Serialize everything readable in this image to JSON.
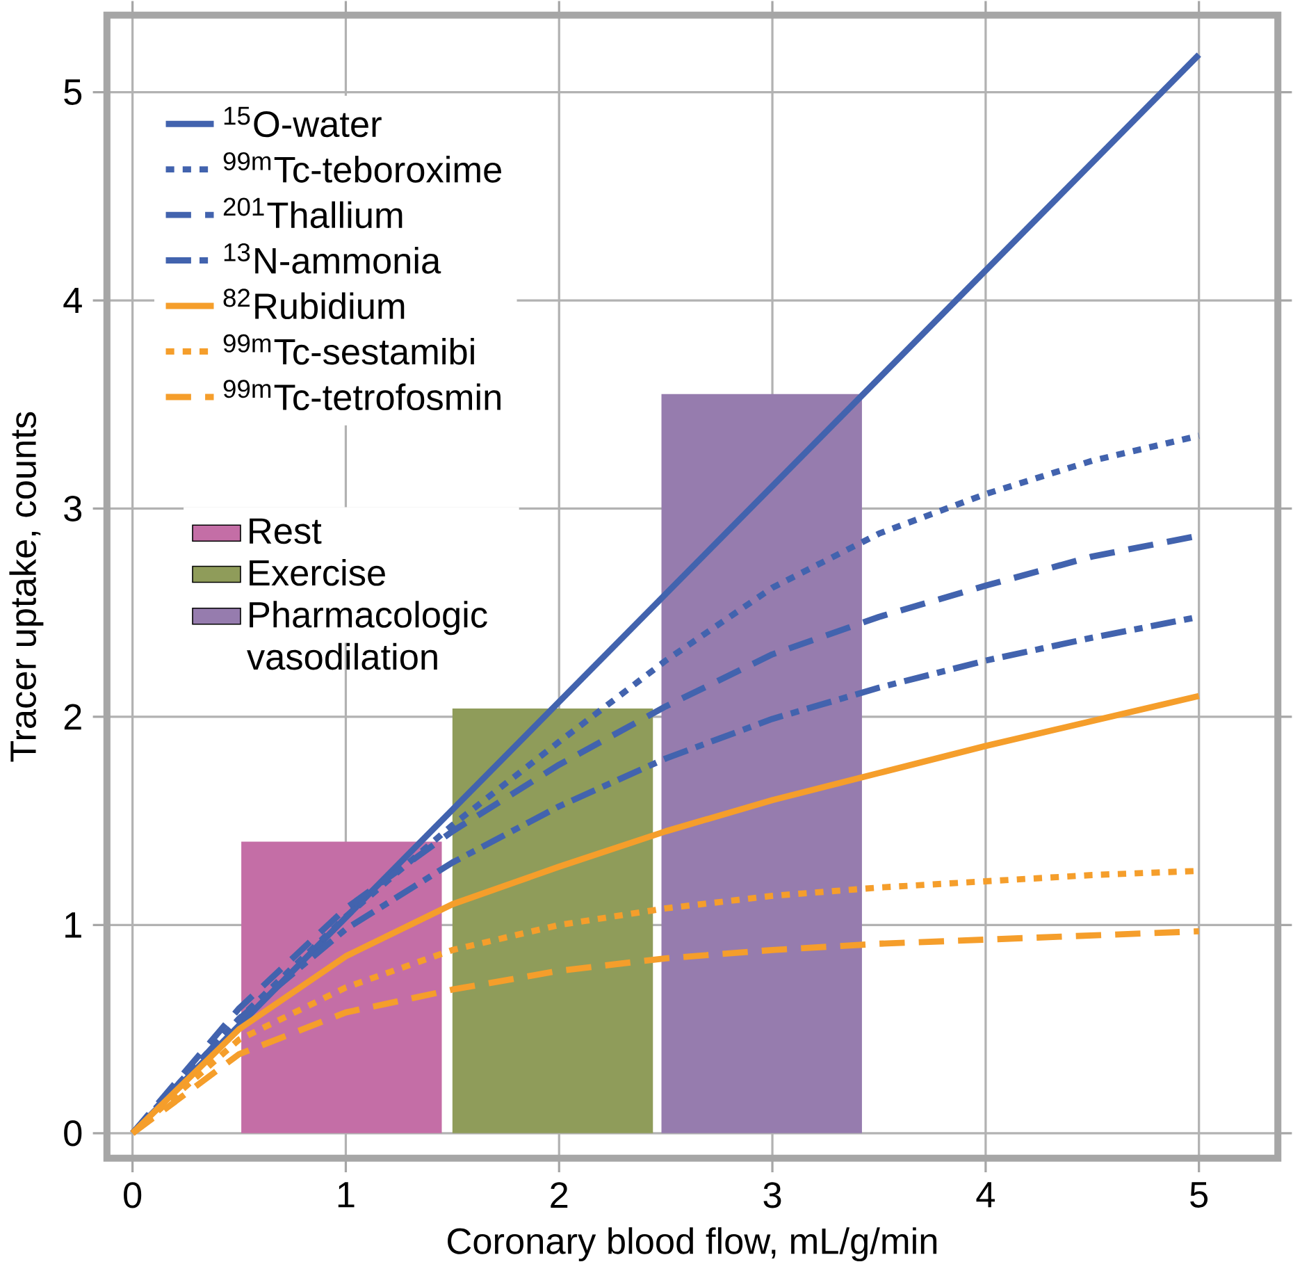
{
  "chart_data": {
    "type": "line",
    "xlabel": "Coronary blood flow, mL/g/min",
    "ylabel": "Tracer uptake, counts",
    "xlim": [
      -0.12,
      5.37
    ],
    "ylim": [
      -0.12,
      5.37
    ],
    "xticks": [
      0,
      1,
      2,
      3,
      4,
      5
    ],
    "yticks": [
      0,
      1,
      2,
      3,
      4,
      5
    ],
    "grid": true,
    "legend": "top left",
    "x": [
      0,
      0.5,
      1,
      1.5,
      2,
      2.5,
      3,
      3.5,
      4,
      4.5,
      5
    ],
    "series": [
      {
        "name": "$^{15}$O-water",
        "color": "#4263ae",
        "line_style": "solid",
        "x": [
          0,
          5
        ],
        "values": [
          0,
          5.18
        ]
      },
      {
        "name": "$^{99m}$Tc-teboroxime",
        "color": "#4263ae",
        "line_style": "dotted",
        "values": [
          0,
          0.55,
          1.04,
          1.48,
          1.88,
          2.27,
          2.62,
          2.88,
          3.07,
          3.23,
          3.35
        ]
      },
      {
        "name": "$^{201}$Thallium",
        "color": "#4263ae",
        "line_style": "dashed",
        "values": [
          0,
          0.6,
          1.08,
          1.45,
          1.77,
          2.05,
          2.3,
          2.48,
          2.63,
          2.77,
          2.87
        ]
      },
      {
        "name": "$^{13}$N-ammonia",
        "color": "#4263ae",
        "line_style": "dashdot",
        "values": [
          0,
          0.55,
          0.98,
          1.3,
          1.57,
          1.8,
          1.99,
          2.14,
          2.27,
          2.38,
          2.48
        ]
      },
      {
        "name": "$^{82}$Rubidium",
        "color": "#f59e2b",
        "line_style": "solid",
        "values": [
          0,
          0.5,
          0.85,
          1.1,
          1.28,
          1.45,
          1.6,
          1.73,
          1.86,
          1.98,
          2.1
        ]
      },
      {
        "name": "$^{99m}$Tc-sestamibi",
        "color": "#f59e2b",
        "line_style": "dotted",
        "values": [
          0,
          0.45,
          0.7,
          0.88,
          1.0,
          1.08,
          1.14,
          1.18,
          1.21,
          1.24,
          1.26
        ]
      },
      {
        "name": "$^{99m}$Tc-tetrofosmin",
        "color": "#f59e2b",
        "line_style": "dashed",
        "values": [
          0,
          0.38,
          0.58,
          0.69,
          0.78,
          0.84,
          0.88,
          0.91,
          0.93,
          0.95,
          0.97
        ]
      },
      {
        "name": "Rest",
        "type": "bar",
        "color": "#c46ea6",
        "x": [
          0.98
        ],
        "values": [
          1.4
        ]
      },
      {
        "name": "Exercise",
        "type": "bar",
        "color": "#8f9c5a",
        "x": [
          1.97
        ],
        "values": [
          2.04
        ]
      },
      {
        "name": "Pharmacologic vasodilation",
        "type": "bar",
        "color": "#967cae",
        "x": [
          2.95
        ],
        "values": [
          3.55
        ]
      }
    ]
  }
}
